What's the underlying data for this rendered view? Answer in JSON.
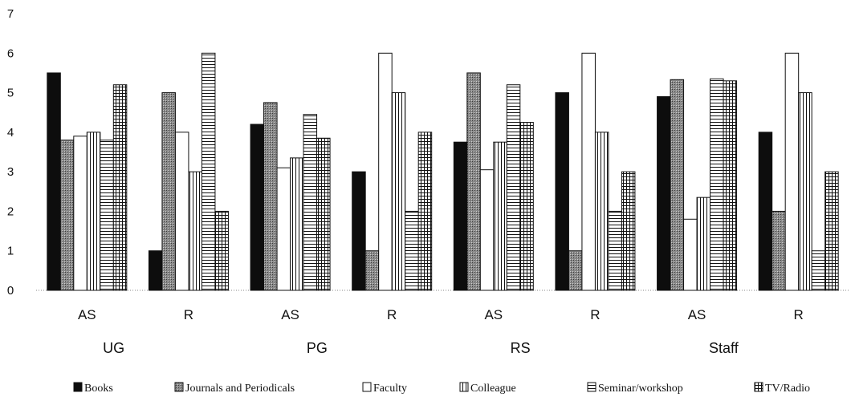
{
  "chart_data": {
    "type": "bar",
    "title": "",
    "xlabel": "",
    "ylabel": "",
    "ylim": [
      0,
      7
    ],
    "yticks": [
      "0",
      "1",
      "2",
      "3",
      "4",
      "5",
      "6",
      "7"
    ],
    "grid": false,
    "legend_position": "bottom",
    "categories": [
      "AS",
      "R",
      "AS",
      "R",
      "AS",
      "R",
      "AS",
      "R"
    ],
    "groups": [
      "UG",
      "PG",
      "RS",
      "Staff"
    ],
    "series": [
      {
        "name": "Books",
        "values": [
          5.5,
          1.0,
          4.2,
          3.0,
          3.75,
          5.0,
          4.9,
          4.0
        ]
      },
      {
        "name": "Journals and Periodicals",
        "values": [
          3.8,
          5.0,
          4.75,
          1.0,
          5.5,
          1.0,
          5.33,
          2.0
        ]
      },
      {
        "name": "Faculty",
        "values": [
          3.9,
          4.0,
          3.1,
          6.0,
          3.05,
          6.0,
          1.8,
          6.0
        ]
      },
      {
        "name": "Colleague",
        "values": [
          4.0,
          3.0,
          3.35,
          5.0,
          3.75,
          4.0,
          2.35,
          5.0
        ]
      },
      {
        "name": "Seminar/workshop",
        "values": [
          3.8,
          6.0,
          4.45,
          2.0,
          5.2,
          2.0,
          5.35,
          1.0
        ]
      },
      {
        "name": "TV/Radio",
        "values": [
          5.2,
          2.0,
          3.85,
          4.0,
          4.25,
          3.0,
          5.3,
          3.0
        ]
      }
    ],
    "legend_texts": [
      "Books",
      "Journals and Periodicals",
      "Faculty",
      "Colleague",
      "Seminar/workshop",
      "TV/Radio"
    ]
  }
}
